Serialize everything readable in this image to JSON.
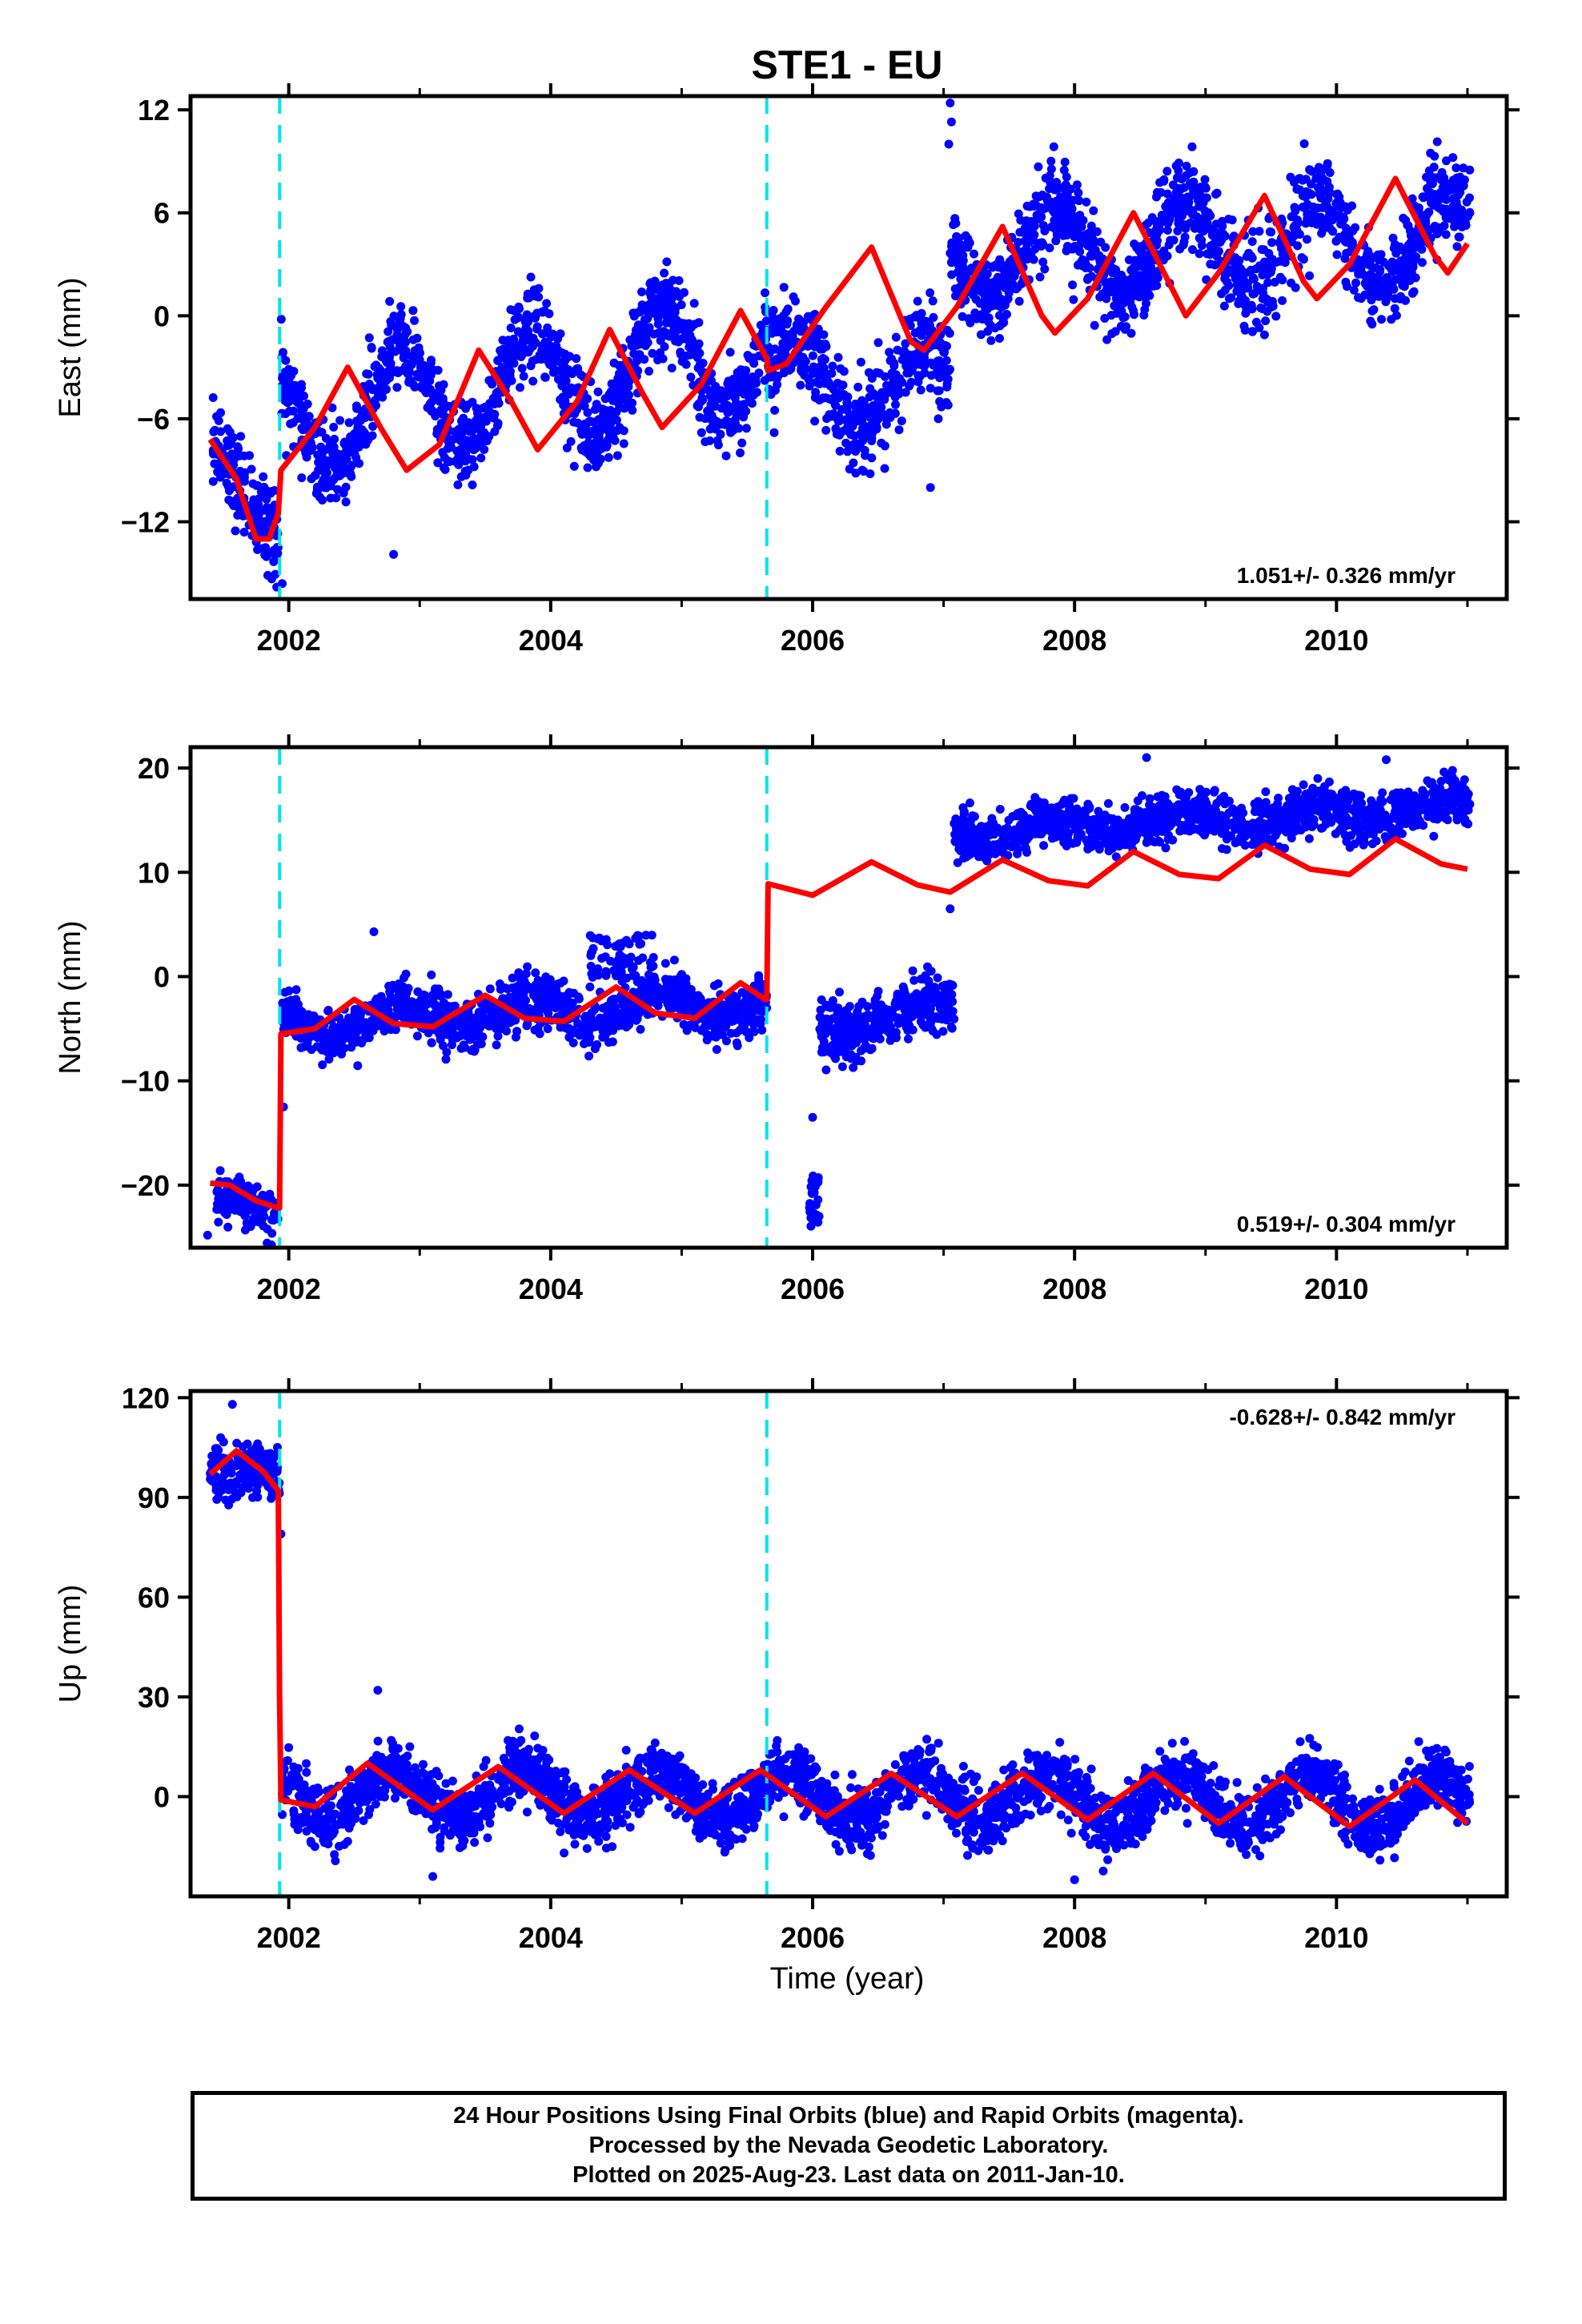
{
  "chart_data": {
    "title": "STE1 - EU",
    "type": "scatter",
    "x_label": "Time (year)",
    "x_range": [
      2001.25,
      2011.3
    ],
    "x_ticks": [
      2002,
      2004,
      2006,
      2008,
      2010
    ],
    "vertical_markers": [
      2001.93,
      2005.65
    ],
    "colors": {
      "data": "#0000ff",
      "model": "#ff0000",
      "markers": "#00e5ee"
    },
    "panels": [
      {
        "name": "East",
        "ylabel": "East (mm)",
        "ylim": [
          -16.5,
          12.8
        ],
        "yticks": [
          12,
          6,
          0,
          -6,
          -12
        ],
        "ytick_labels": [
          "12",
          "6",
          "0",
          "−6",
          "−12"
        ],
        "rate_label": "1.051+/- 0.326 mm/yr",
        "rate_position": "bottom-right",
        "model_curve": {
          "x": [
            2001.4,
            2001.6,
            2001.75,
            2001.85,
            2001.92,
            2001.94,
            2002.2,
            2002.45,
            2002.7,
            2002.9,
            2003.15,
            2003.45,
            2003.7,
            2003.9,
            2004.2,
            2004.45,
            2004.7,
            2004.85,
            2005.15,
            2005.45,
            2005.65,
            2005.66,
            2005.8,
            2006.1,
            2006.45,
            2006.75,
            2006.85,
            2007.1,
            2007.45,
            2007.75,
            2007.85,
            2008.1,
            2008.45,
            2008.75,
            2008.85,
            2009.1,
            2009.45,
            2009.75,
            2009.85,
            2010.1,
            2010.45,
            2010.75,
            2010.85,
            2011.0
          ],
          "y": [
            -7.2,
            -9.5,
            -13.0,
            -13.0,
            -11.5,
            -9.0,
            -6.5,
            -3.0,
            -6.5,
            -9.0,
            -7.5,
            -2.0,
            -5.0,
            -7.8,
            -5.0,
            -0.8,
            -4.5,
            -6.5,
            -4.0,
            0.3,
            -2.5,
            -3.2,
            -2.8,
            0.5,
            4.0,
            -1.5,
            -2.0,
            0.5,
            5.2,
            0.0,
            -1.0,
            1.0,
            6.0,
            1.5,
            0.0,
            2.5,
            7.0,
            2.0,
            1.0,
            3.0,
            8.0,
            3.5,
            2.5,
            4.2
          ]
        },
        "data_segments": [
          {
            "x": [
              2001.42,
              2001.92
            ],
            "mean": [
              -7.5,
              -13.0
            ],
            "amp": 1.6,
            "seasonal": 0.0,
            "scatter": 1.3
          },
          {
            "x": [
              2001.94,
              2005.65
            ],
            "mean": [
              -6.2,
              -2.0
            ],
            "amp": 3.3,
            "seasonal": 1.0,
            "scatter": 1.2
          },
          {
            "x": [
              2005.66,
              2007.05
            ],
            "mean": [
              -3.5,
              -4.5
            ],
            "amp": 2.2,
            "seasonal": 1.0,
            "scatter": 1.4
          },
          {
            "x": [
              2007.05,
              2011.02
            ],
            "mean": [
              3.5,
              4.5
            ],
            "amp": 2.6,
            "seasonal": 1.0,
            "scatter": 1.3
          }
        ],
        "outliers": [
          {
            "x": 2007.05,
            "y": 12.4
          },
          {
            "x": 2007.06,
            "y": 11.3
          },
          {
            "x": 2007.04,
            "y": 10.0
          },
          {
            "x": 2001.95,
            "y": -15.6
          },
          {
            "x": 2002.8,
            "y": -13.9
          },
          {
            "x": 2006.9,
            "y": -10.0
          }
        ]
      },
      {
        "name": "North",
        "ylabel": "North (mm)",
        "ylim": [
          -26,
          22
        ],
        "yticks": [
          20,
          10,
          0,
          -10,
          -20
        ],
        "ytick_labels": [
          "20",
          "10",
          "0",
          "−10",
          "−20"
        ],
        "rate_label": "0.519+/- 0.304 mm/yr",
        "rate_position": "bottom-right",
        "model_curve": {
          "x": [
            2001.4,
            2001.55,
            2001.75,
            2001.92,
            2001.93,
            2001.94,
            2002.2,
            2002.5,
            2002.8,
            2003.1,
            2003.5,
            2003.8,
            2004.1,
            2004.5,
            2004.8,
            2005.1,
            2005.45,
            2005.64,
            2005.65,
            2005.66,
            2006.0,
            2006.45,
            2006.8,
            2007.05,
            2007.45,
            2007.8,
            2008.1,
            2008.45,
            2008.8,
            2009.1,
            2009.45,
            2009.8,
            2010.1,
            2010.45,
            2010.8,
            2011.0
          ],
          "y": [
            -19.8,
            -20.0,
            -21.5,
            -22.2,
            -22.2,
            -5.5,
            -5.0,
            -2.2,
            -4.5,
            -4.8,
            -1.8,
            -4.0,
            -4.3,
            -1.0,
            -3.5,
            -4.0,
            -0.6,
            -2.2,
            -2.2,
            8.9,
            7.8,
            11.0,
            8.8,
            8.1,
            11.2,
            9.2,
            8.7,
            12.0,
            9.8,
            9.4,
            12.6,
            10.3,
            9.8,
            13.2,
            10.8,
            10.3
          ]
        },
        "data_segments": [
          {
            "x": [
              2001.45,
              2001.92
            ],
            "mean": [
              -21.0,
              -22.5
            ],
            "amp": 0.3,
            "seasonal": 0.0,
            "scatter": 1.1
          },
          {
            "x": [
              2001.95,
              2005.65
            ],
            "mean": [
              -4.5,
              -2.5
            ],
            "amp": 1.4,
            "seasonal": 1.0,
            "scatter": 1.2
          },
          {
            "x": [
              2006.05,
              2007.08
            ],
            "mean": [
              -5.5,
              -2.5
            ],
            "amp": 0.6,
            "seasonal": 1.0,
            "scatter": 1.4
          },
          {
            "x": [
              2007.08,
              2011.02
            ],
            "mean": [
              13.8,
              16.2
            ],
            "amp": 0.8,
            "seasonal": 1.0,
            "scatter": 1.1
          }
        ],
        "extra_clusters": [
          {
            "x": [
              2005.97,
              2006.05
            ],
            "y_range": [
              -24.0,
              -19.0
            ],
            "count": 35
          },
          {
            "x": [
              2004.3,
              2004.8
            ],
            "y_range": [
              0.0,
              4.0
            ],
            "count": 60
          }
        ],
        "outliers": [
          {
            "x": 2001.38,
            "y": -24.8
          },
          {
            "x": 2001.96,
            "y": -12.5
          },
          {
            "x": 2006.0,
            "y": -13.5
          },
          {
            "x": 2002.65,
            "y": 4.3
          },
          {
            "x": 2008.55,
            "y": 21.0
          },
          {
            "x": 2010.38,
            "y": 20.8
          },
          {
            "x": 2007.05,
            "y": 6.5
          }
        ]
      },
      {
        "name": "Up",
        "ylabel": "Up (mm)",
        "ylim": [
          -30,
          122
        ],
        "yticks": [
          120,
          90,
          60,
          30,
          0
        ],
        "ytick_labels": [
          "120",
          "90",
          "60",
          "30",
          "0"
        ],
        "rate_label": "-0.628+/- 0.842 mm/yr",
        "rate_position": "top-right",
        "model_curve": {
          "x": [
            2001.4,
            2001.6,
            2001.8,
            2001.92,
            2001.93,
            2001.94,
            2002.2,
            2002.6,
            2003.1,
            2003.6,
            2004.1,
            2004.6,
            2005.1,
            2005.6,
            2006.1,
            2006.6,
            2007.1,
            2007.6,
            2008.1,
            2008.6,
            2009.1,
            2009.6,
            2010.1,
            2010.6,
            2011.0
          ],
          "y": [
            97,
            104,
            98,
            92,
            30,
            -1,
            -3,
            10,
            -4,
            9,
            -5,
            8,
            -5,
            8,
            -6,
            7,
            -6,
            7,
            -7,
            7,
            -8,
            6,
            -9,
            5,
            -8
          ]
        },
        "data_segments": [
          {
            "x": [
              2001.4,
              2001.93
            ],
            "mean": [
              100.0,
              93.0
            ],
            "amp": 4.0,
            "seasonal": 1.0,
            "scatter": 4.5
          },
          {
            "x": [
              2001.95,
              2011.02
            ],
            "mean": [
              1.5,
              -2.0
            ],
            "amp": 7.5,
            "seasonal": 1.0,
            "scatter": 4.5
          }
        ],
        "outliers": [
          {
            "x": 2001.57,
            "y": 118
          },
          {
            "x": 2001.94,
            "y": 79
          },
          {
            "x": 2002.68,
            "y": 32
          },
          {
            "x": 2008.0,
            "y": -25
          },
          {
            "x": 2003.1,
            "y": -24
          }
        ]
      }
    ]
  },
  "footer": {
    "line1": "24 Hour Positions Using Final Orbits (blue) and Rapid Orbits (magenta).",
    "line2": "Processed by the Nevada Geodetic Laboratory.",
    "line3": "Plotted on 2025-Aug-23. Last data on 2011-Jan-10."
  }
}
